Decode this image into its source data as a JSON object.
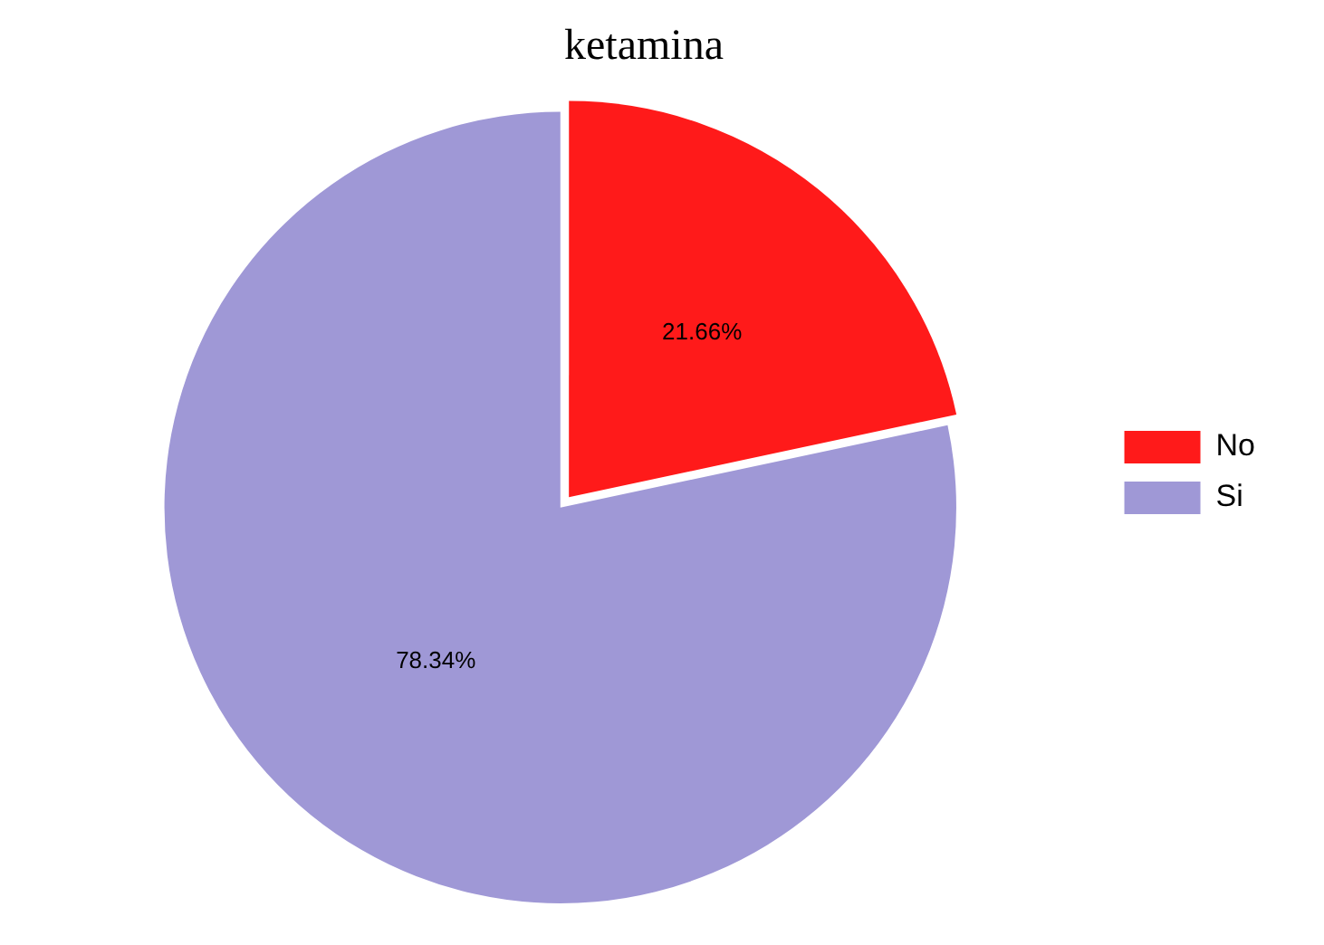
{
  "chart_data": {
    "type": "pie",
    "title": "ketamina",
    "categories": [
      "No",
      "Si"
    ],
    "values": [
      21.66,
      78.34
    ],
    "colors": [
      "#ff1a1a",
      "#9f98d6"
    ],
    "value_labels": [
      "21.66%",
      "78.34%"
    ],
    "legend": "right"
  }
}
